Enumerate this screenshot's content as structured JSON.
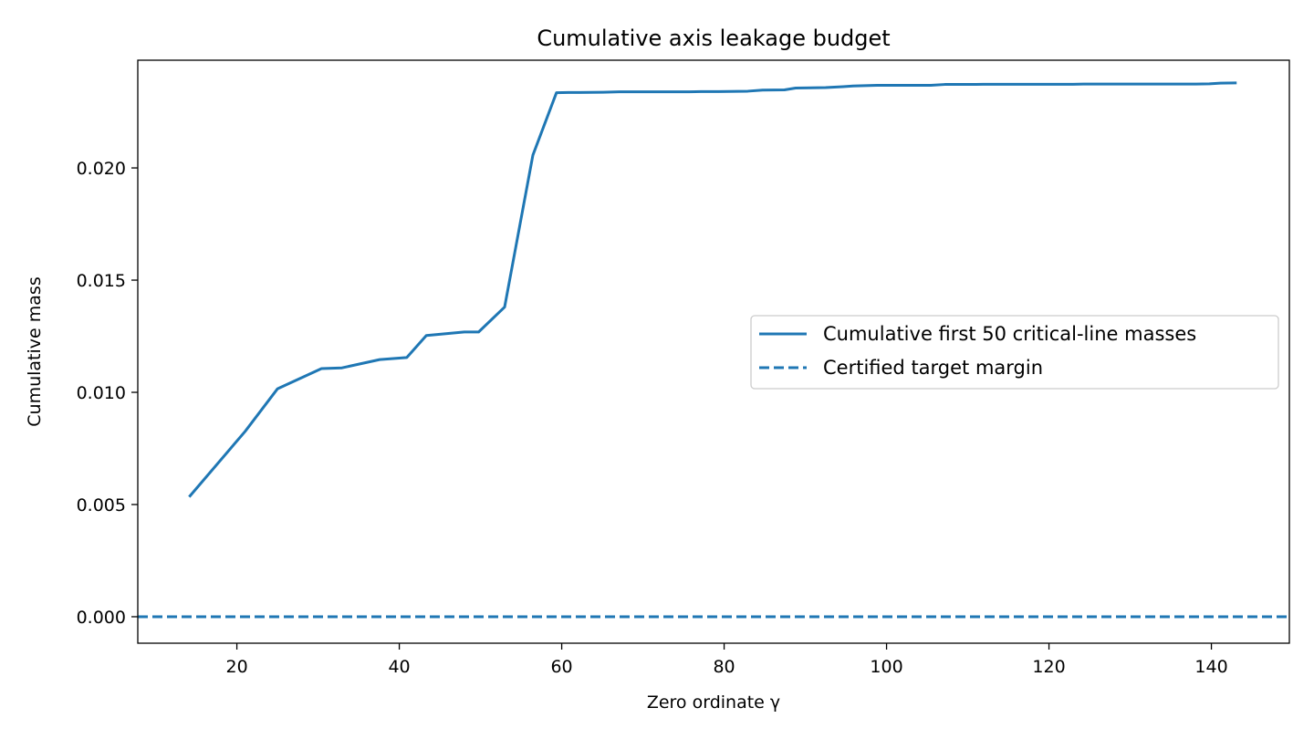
{
  "chart_data": {
    "type": "line",
    "title": "Cumulative axis leakage budget",
    "xlabel": "Zero ordinate γ",
    "ylabel": "Cumulative mass",
    "xlim": [
      7.8,
      149.6
    ],
    "ylim": [
      -0.00118,
      0.0248
    ],
    "x_ticks": [
      20,
      40,
      60,
      80,
      100,
      120,
      140
    ],
    "x_tick_labels": [
      "20",
      "40",
      "60",
      "80",
      "100",
      "120",
      "140"
    ],
    "y_ticks": [
      0.0,
      0.005,
      0.01,
      0.015,
      0.02
    ],
    "y_tick_labels": [
      "0.000",
      "0.005",
      "0.010",
      "0.015",
      "0.020"
    ],
    "grid": false,
    "legend_position": "center-right",
    "series": [
      {
        "name": "Cumulative first 50 critical-line masses",
        "style": "solid",
        "color": "#1f77b4",
        "points": [
          [
            14.13,
            0.00534
          ],
          [
            21.02,
            0.00826
          ],
          [
            25.01,
            0.01016
          ],
          [
            30.42,
            0.01106
          ],
          [
            32.94,
            0.01109
          ],
          [
            37.59,
            0.01146
          ],
          [
            40.92,
            0.01155
          ],
          [
            43.33,
            0.01253
          ],
          [
            48.01,
            0.01269
          ],
          [
            49.77,
            0.01269
          ],
          [
            52.97,
            0.0138
          ],
          [
            56.45,
            0.02057
          ],
          [
            59.35,
            0.02335
          ],
          [
            60.83,
            0.02336
          ],
          [
            65.11,
            0.02337
          ],
          [
            67.08,
            0.02339
          ],
          [
            69.55,
            0.02339
          ],
          [
            72.07,
            0.02339
          ],
          [
            75.7,
            0.02339
          ],
          [
            77.14,
            0.0234
          ],
          [
            79.34,
            0.0234
          ],
          [
            82.91,
            0.02342
          ],
          [
            84.74,
            0.02347
          ],
          [
            87.43,
            0.02348
          ],
          [
            88.81,
            0.02356
          ],
          [
            92.49,
            0.02358
          ],
          [
            94.65,
            0.02362
          ],
          [
            95.87,
            0.02365
          ],
          [
            98.83,
            0.02368
          ],
          [
            101.32,
            0.02368
          ],
          [
            103.73,
            0.02368
          ],
          [
            105.45,
            0.02368
          ],
          [
            107.17,
            0.02372
          ],
          [
            111.03,
            0.02372
          ],
          [
            111.87,
            0.02373
          ],
          [
            114.32,
            0.02373
          ],
          [
            116.23,
            0.02373
          ],
          [
            118.79,
            0.02373
          ],
          [
            121.37,
            0.02373
          ],
          [
            122.95,
            0.02373
          ],
          [
            124.26,
            0.02374
          ],
          [
            127.52,
            0.02374
          ],
          [
            129.58,
            0.02374
          ],
          [
            131.09,
            0.02374
          ],
          [
            133.5,
            0.02374
          ],
          [
            134.76,
            0.02374
          ],
          [
            138.12,
            0.02374
          ],
          [
            139.74,
            0.02375
          ],
          [
            141.12,
            0.02378
          ],
          [
            143.11,
            0.02379
          ]
        ]
      },
      {
        "name": "Certified target margin",
        "style": "dashed",
        "color": "#1f77b4",
        "constant_y": 0.0
      }
    ]
  }
}
